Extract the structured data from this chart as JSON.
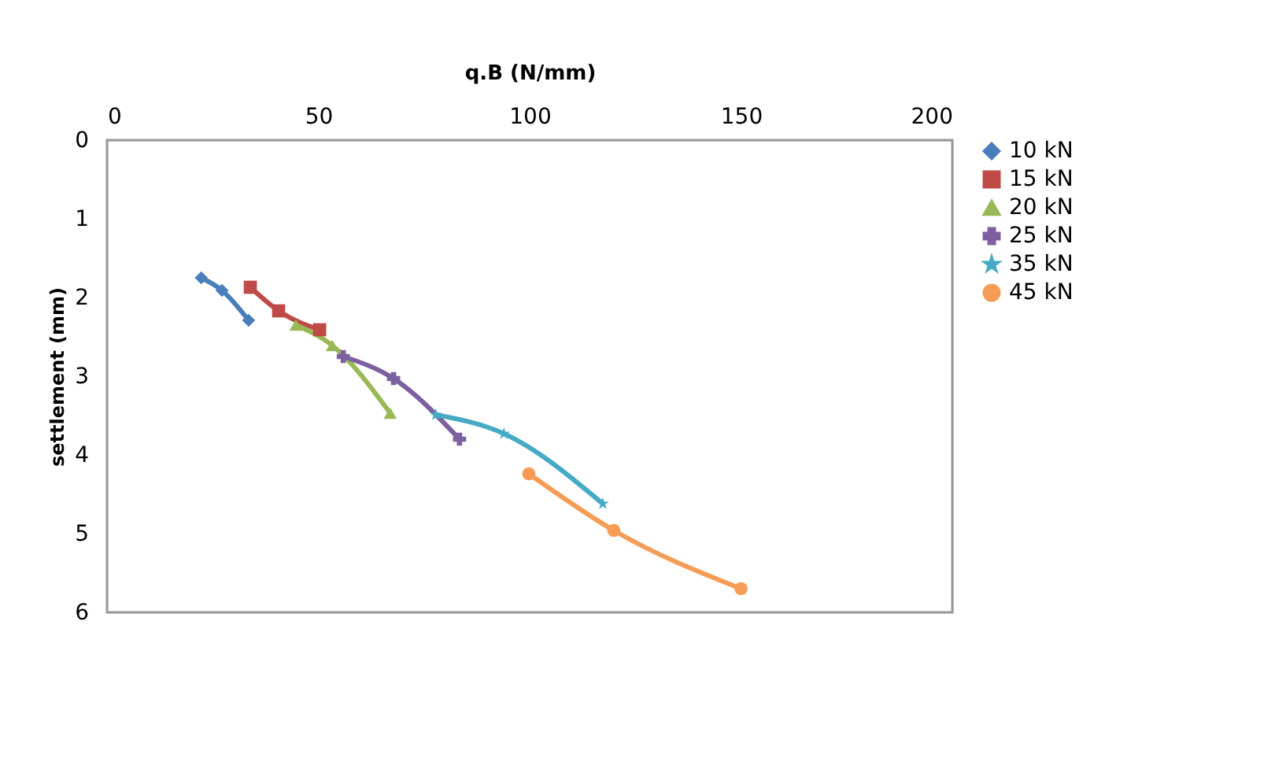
{
  "chart_data": {
    "type": "line",
    "xlabel": "q.B (N/mm)",
    "ylabel": "settlement (mm)",
    "xlim": [
      0,
      200
    ],
    "xticks": [
      0,
      50,
      100,
      150,
      200
    ],
    "ylim": [
      6,
      0
    ],
    "yticks": [
      0,
      1,
      2,
      3,
      4,
      5,
      6
    ],
    "grid": false,
    "legend": "right",
    "line_style": "solid",
    "series": [
      {
        "name": "10 kN",
        "color": "#4a7ebb",
        "marker": "diamond",
        "x": [
          22.3,
          27.2,
          33.5
        ],
        "values": [
          1.75,
          1.91,
          2.29
        ]
      },
      {
        "name": "15 kN",
        "color": "#be4b48",
        "marker": "square",
        "x": [
          33.9,
          40.6,
          50.3
        ],
        "values": [
          1.87,
          2.17,
          2.41
        ]
      },
      {
        "name": "20 kN",
        "color": "#98b954",
        "marker": "triangle",
        "x": [
          44.7,
          53.3,
          67
        ],
        "values": [
          2.35,
          2.61,
          3.47
        ]
      },
      {
        "name": "25 kN",
        "color": "#7d60a0",
        "marker": "cross",
        "x": [
          55.9,
          67.8,
          83.4
        ],
        "values": [
          2.75,
          3.03,
          3.8
        ]
      },
      {
        "name": "35 kN",
        "color": "#46aac5",
        "marker": "star",
        "x": [
          77.8,
          93.9,
          117.3
        ],
        "values": [
          3.49,
          3.73,
          4.62
        ]
      },
      {
        "name": "45 kN",
        "color": "#f59d56",
        "marker": "circle",
        "x": [
          99.8,
          119.9,
          150
        ],
        "values": [
          4.24,
          4.96,
          5.7
        ]
      }
    ]
  }
}
